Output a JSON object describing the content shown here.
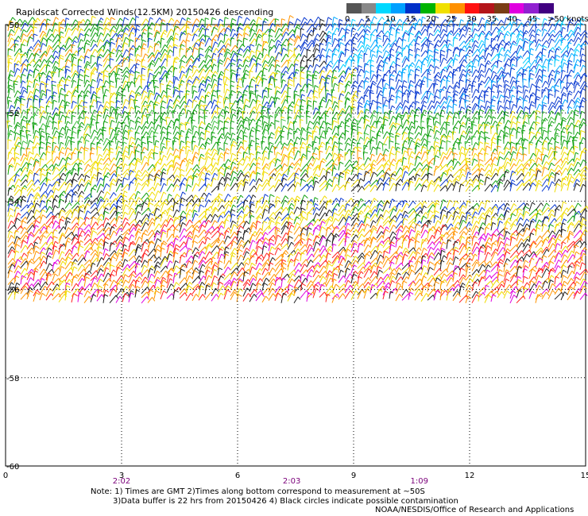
{
  "title": "Rapidscat Corrected Winds(12.5KM) 20150426 descending",
  "legend": {
    "labels": [
      "0",
      "5",
      "10",
      "15",
      "20",
      "25",
      "30",
      "35",
      "40",
      "45",
      ">50 knots"
    ],
    "colors": [
      "#555555",
      "#888888",
      "#00d8ff",
      "#00a0ff",
      "#0030c8",
      "#00b400",
      "#f0e000",
      "#ff9000",
      "#ff1010",
      "#b4141a",
      "#7a3c14",
      "#e000e0",
      "#9020d0",
      "#400080"
    ]
  },
  "chart_data": {
    "type": "map-wind-barbs",
    "x_ticks": [
      "0",
      "3",
      "6",
      "9",
      "12",
      "15"
    ],
    "y_ticks": [
      "-50",
      "-52",
      "-54",
      "-56",
      "-58",
      "-60"
    ],
    "xlim": [
      0,
      15
    ],
    "ylim": [
      -60,
      -50
    ],
    "swath_times": [
      {
        "x": 3,
        "label": "2:02"
      },
      {
        "x": 7.4,
        "label": "2:03"
      },
      {
        "x": 10.7,
        "label": "1:09"
      }
    ],
    "grid": "dotted"
  },
  "notes": {
    "line1": "Note: 1) Times are GMT 2)Times along bottom correspond to measurement at ~50S",
    "line2": "3)Data buffer is 22 hrs from 20150426 4) Black circles indicate possible contamination"
  },
  "credit": "NOAA/NESDIS/Office of Research and Applications"
}
